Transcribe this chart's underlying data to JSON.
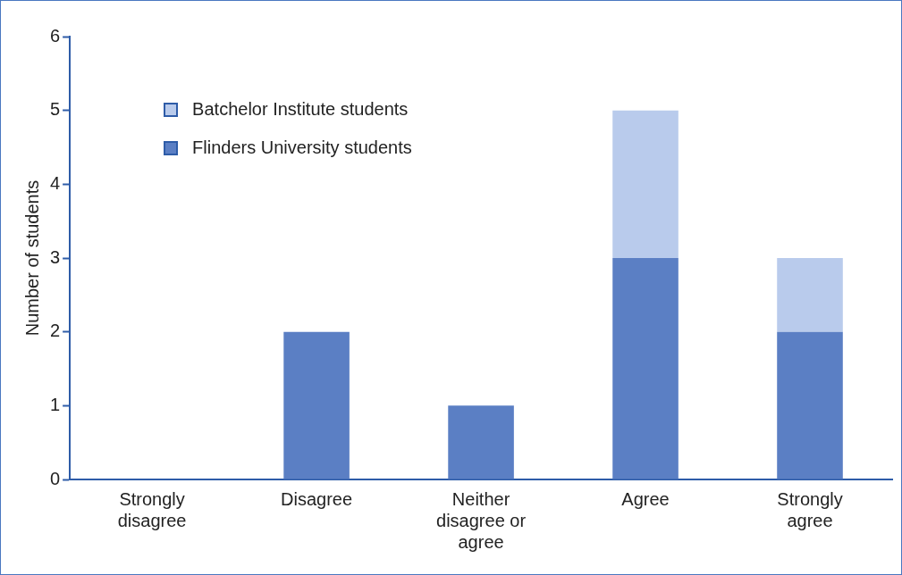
{
  "chart_data": {
    "type": "bar",
    "stacked": true,
    "ylabel": "Number of students",
    "categories": [
      "Strongly disagree",
      "Disagree",
      "Neither disagree or agree",
      "Agree",
      "Strongly agree"
    ],
    "series": [
      {
        "name": "Flinders University students",
        "color": "#5b7fc4",
        "values": [
          0,
          2,
          1,
          3,
          2
        ]
      },
      {
        "name": "Batchelor Institute students",
        "color": "#b9cbec",
        "values": [
          0,
          0,
          0,
          2,
          1
        ]
      }
    ],
    "ylim": [
      0,
      6
    ],
    "yticks": [
      0,
      1,
      2,
      3,
      4,
      5,
      6
    ],
    "grid": false,
    "legend": "top left"
  }
}
